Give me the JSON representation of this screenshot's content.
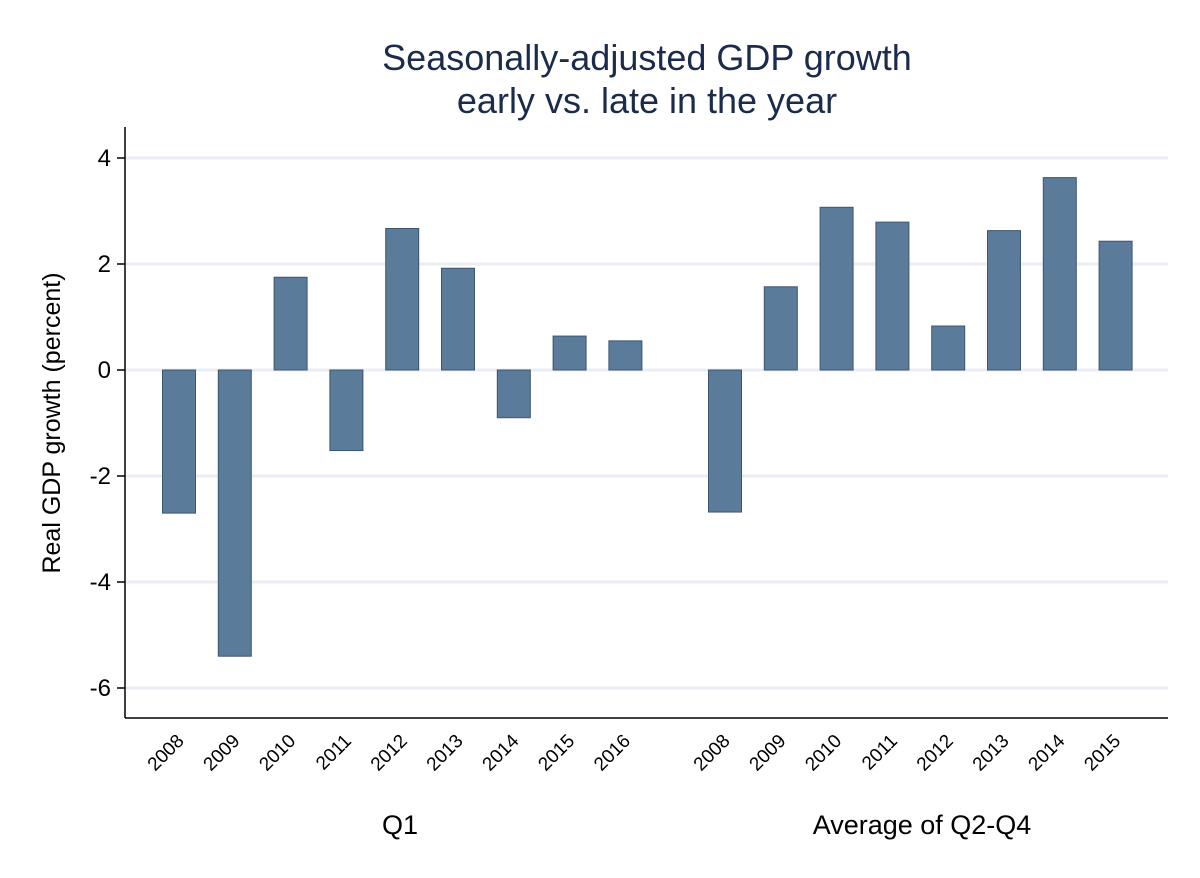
{
  "chart_data": {
    "type": "bar",
    "title": [
      "Seasonally-adjusted GDP growth",
      "early vs. late in the year"
    ],
    "ylabel": "Real GDP growth (percent)",
    "ylim": [
      -6.5,
      4.6
    ],
    "yticks": [
      4,
      2,
      0,
      -2,
      -4,
      -6
    ],
    "ytick_labels": [
      "4",
      "2",
      "0",
      "-2",
      "-4",
      "-6"
    ],
    "grid": true,
    "bar_color": "#5a7b9a",
    "bar_edge_color": "#3d5670",
    "grid_color": "#eaeef4",
    "title_color": "#1a2b4c",
    "groups": [
      {
        "name": "Q1",
        "categories": [
          "2008",
          "2009",
          "2010",
          "2011",
          "2012",
          "2013",
          "2014",
          "2015",
          "2016"
        ],
        "values": [
          -2.7,
          -5.4,
          1.75,
          -1.52,
          2.67,
          1.92,
          -0.9,
          0.64,
          0.55
        ]
      },
      {
        "name": "Average of Q2-Q4",
        "categories": [
          "2008",
          "2009",
          "2010",
          "2011",
          "2012",
          "2013",
          "2014",
          "2015"
        ],
        "values": [
          -2.68,
          1.57,
          3.07,
          2.79,
          0.83,
          2.63,
          3.63,
          2.43
        ]
      }
    ]
  }
}
